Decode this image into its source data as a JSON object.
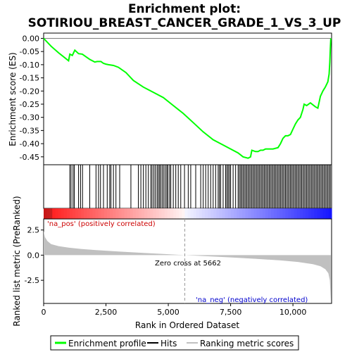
{
  "chart_data": {
    "type": "line",
    "title_line1": "Enrichment plot:",
    "title_line2": "SOTIRIOU_BREAST_CANCER_GRADE_1_VS_3_UP",
    "top_panel": {
      "ylabel": "Enrichment score (ES)",
      "ylim": [
        -0.48,
        0.02
      ],
      "yticks": [
        0.0,
        -0.05,
        -0.1,
        -0.15,
        -0.2,
        -0.25,
        -0.3,
        -0.35,
        -0.4,
        -0.45
      ],
      "ytick_labels": [
        "0.00",
        "-0.05",
        "-0.10",
        "-0.15",
        "-0.20",
        "-0.25",
        "-0.30",
        "-0.35",
        "-0.40",
        "-0.45"
      ],
      "series": [
        {
          "name": "Enrichment profile",
          "color": "#00ff00",
          "x": [
            0,
            300,
            600,
            1000,
            1050,
            1150,
            1250,
            1400,
            1550,
            1700,
            1850,
            2050,
            2150,
            2300,
            2400,
            2500,
            2600,
            2800,
            3000,
            3300,
            3600,
            4000,
            4400,
            4800,
            5200,
            5600,
            6000,
            6400,
            6800,
            7200,
            7500,
            7800,
            8000,
            8200,
            8300,
            8350,
            8500,
            8600,
            8700,
            8800,
            8900,
            9000,
            9200,
            9400,
            9500,
            9600,
            9700,
            9800,
            9900,
            10000,
            10100,
            10200,
            10300,
            10400,
            10450,
            10550,
            10700,
            10900,
            11000,
            11100,
            11200,
            11300,
            11400,
            11450,
            11480,
            11500,
            11520
          ],
          "y": [
            0.0,
            -0.03,
            -0.055,
            -0.085,
            -0.06,
            -0.065,
            -0.045,
            -0.058,
            -0.06,
            -0.07,
            -0.08,
            -0.09,
            -0.088,
            -0.088,
            -0.095,
            -0.098,
            -0.1,
            -0.103,
            -0.11,
            -0.13,
            -0.16,
            -0.185,
            -0.205,
            -0.225,
            -0.255,
            -0.285,
            -0.32,
            -0.355,
            -0.385,
            -0.405,
            -0.42,
            -0.435,
            -0.45,
            -0.455,
            -0.45,
            -0.425,
            -0.43,
            -0.43,
            -0.425,
            -0.425,
            -0.42,
            -0.42,
            -0.42,
            -0.415,
            -0.4,
            -0.38,
            -0.37,
            -0.37,
            -0.365,
            -0.345,
            -0.325,
            -0.31,
            -0.3,
            -0.27,
            -0.25,
            -0.255,
            -0.245,
            -0.26,
            -0.265,
            -0.22,
            -0.2,
            -0.185,
            -0.165,
            -0.135,
            -0.09,
            -0.04,
            0.0
          ]
        }
      ]
    },
    "hits": [
      1050,
      1100,
      1180,
      1230,
      1400,
      1480,
      1560,
      1850,
      2100,
      2200,
      2280,
      2400,
      2550,
      2650,
      2700,
      2800,
      2900,
      3050,
      3500,
      3800,
      3900,
      4000,
      4100,
      4200,
      4300,
      4350,
      4420,
      4480,
      4550,
      4600,
      4650,
      4700,
      4760,
      4820,
      4880,
      4940,
      4980,
      5050,
      5100,
      5200,
      5300,
      5400,
      5500,
      5650,
      5800,
      5900,
      6100,
      6300,
      6400,
      6500,
      6600,
      6700,
      6800,
      6900,
      7000,
      7050,
      7100,
      7200,
      7300,
      7350,
      7400,
      7450,
      7500,
      7600,
      7700,
      7800,
      7850,
      7900,
      7950,
      8000,
      8050,
      8100,
      8150,
      8200,
      8250,
      8300,
      8350,
      8400,
      8450,
      8500,
      8550,
      8600,
      8650,
      8700,
      8750,
      8800,
      8850,
      8900,
      8950,
      9000,
      9050,
      9100,
      9150,
      9200,
      9250,
      9300,
      9350,
      9400,
      9450,
      9500,
      9550,
      9600,
      9650,
      9700,
      9750,
      9800,
      9850,
      9900,
      9950,
      10000,
      10050,
      10100,
      10150,
      10200,
      10250,
      10300,
      10350,
      10400,
      10450,
      10500,
      10550,
      10600,
      10650,
      10700,
      10750,
      10800,
      10850,
      10900,
      10950,
      11000,
      11050,
      11100,
      11150,
      11200,
      11250,
      11300,
      11350,
      11400,
      11450,
      11500
    ],
    "bottom_panel": {
      "ylabel": "Ranked list metric (PreRanked)",
      "xlabel": "Rank in Ordered Dataset",
      "ylim": [
        -4.8,
        3.6
      ],
      "yticks": [
        2.5,
        0.0,
        -2.5
      ],
      "ytick_labels": [
        "2.5",
        "0.0",
        "-2.5"
      ],
      "fill_color": "#c0c0c0",
      "metric_x": [
        0,
        50,
        150,
        300,
        600,
        1000,
        1500,
        2000,
        3000,
        4000,
        5000,
        5662,
        6500,
        7500,
        8500,
        9500,
        10200,
        10800,
        11100,
        11300,
        11420,
        11480,
        11520
      ],
      "metric_y": [
        2.4,
        1.8,
        1.4,
        1.1,
        0.9,
        0.75,
        0.62,
        0.52,
        0.36,
        0.22,
        0.09,
        0.0,
        -0.1,
        -0.22,
        -0.36,
        -0.52,
        -0.68,
        -0.9,
        -1.1,
        -1.4,
        -1.8,
        -2.5,
        -4.5
      ]
    },
    "xlim": [
      0,
      11550
    ],
    "xticks": [
      0,
      2500,
      5000,
      7500,
      10000
    ],
    "xtick_labels": [
      "0",
      "2,500",
      "5,000",
      "7,500",
      "10,000"
    ],
    "annotations": {
      "pos_label": "'na_pos' (positively correlated)",
      "pos_color": "#cc0000",
      "neg_label": "'na_neg' (negatively correlated)",
      "neg_color": "#0000cc",
      "zero_cross": "Zero cross at 5662",
      "zero_cross_x": 5662
    },
    "legend": {
      "placement": "bottom",
      "items": [
        {
          "label": "Enrichment profile",
          "color": "#00ff00"
        },
        {
          "label": "Hits",
          "color": "#000000"
        },
        {
          "label": "Ranking metric scores",
          "color": "#c0c0c0"
        }
      ]
    }
  }
}
